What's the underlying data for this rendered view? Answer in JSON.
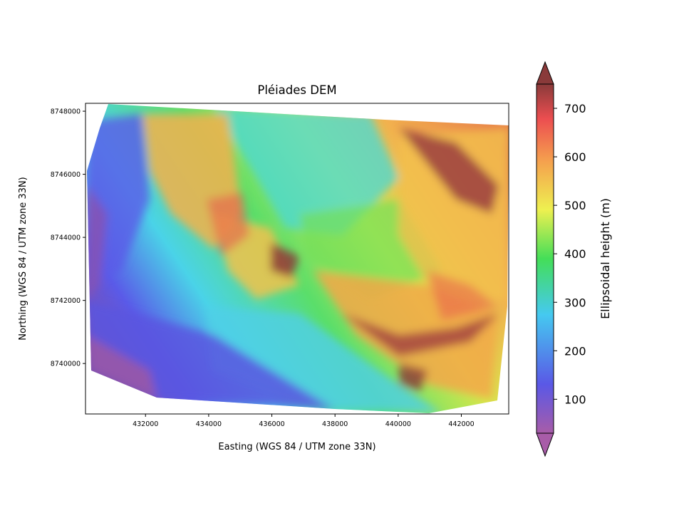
{
  "chart_data": {
    "type": "heatmap",
    "title": "Pléiades DEM",
    "xlabel": "Easting (WGS 84 / UTM zone 33N)",
    "ylabel": "Northing (WGS 84 / UTM zone 33N)",
    "xlim": [
      430100,
      443500
    ],
    "ylim": [
      8738400,
      8748250
    ],
    "xticks": [
      432000,
      434000,
      436000,
      438000,
      440000,
      442000
    ],
    "yticks": [
      8740000,
      8742000,
      8744000,
      8746000,
      8748000
    ],
    "colorbar": {
      "label": "Ellipsoidal height (m)",
      "ticks": [
        100,
        200,
        300,
        400,
        500,
        600,
        700
      ],
      "range": [
        30,
        750
      ],
      "extend": "both",
      "colormap": "rainbow-hillshaded",
      "colors": [
        "#a85ca8",
        "#5a58e6",
        "#45c9f0",
        "#44de58",
        "#eef050",
        "#f5a04e",
        "#ec4e50",
        "#8a3a3a"
      ]
    },
    "grid": false
  }
}
